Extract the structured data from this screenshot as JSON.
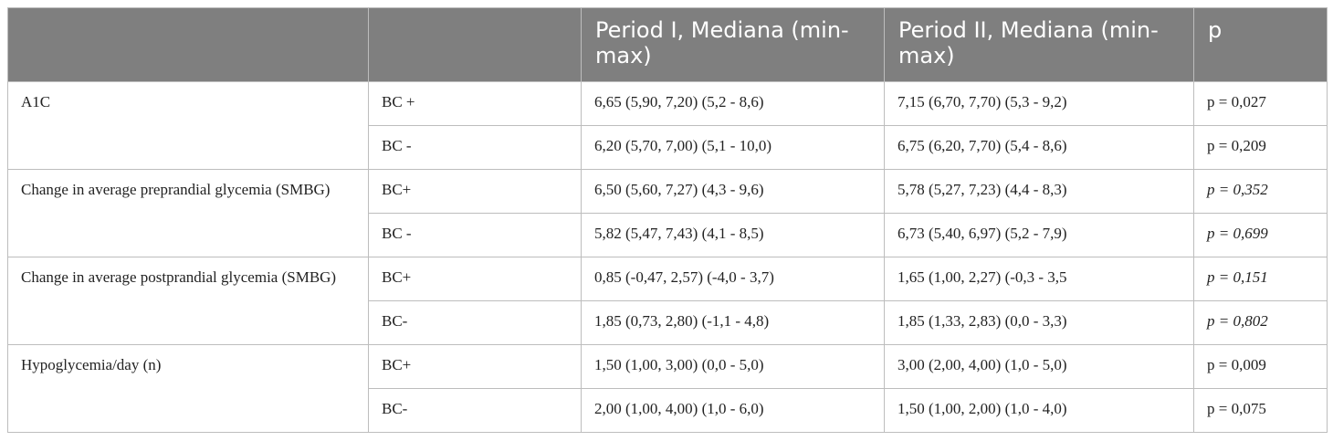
{
  "table": {
    "headers": [
      "",
      "",
      "Period I, Mediana (min-max)",
      "Period II, Mediana (min-max)",
      "p"
    ],
    "groups": [
      {
        "label": "A1C",
        "rows": [
          {
            "subgroup": "BC +",
            "period1": "6,65 (5,90, 7,20) (5,2 - 8,6)",
            "period2": "7,15 (6,70, 7,70) (5,3 - 9,2)",
            "p": "p = 0,027",
            "p_italic": false
          },
          {
            "subgroup": "BC -",
            "period1": "6,20 (5,70, 7,00) (5,1 - 10,0)",
            "period2": "6,75 (6,20, 7,70) (5,4 - 8,6)",
            "p": "p = 0,209",
            "p_italic": false
          }
        ]
      },
      {
        "label": "Change in average preprandial glycemia (SMBG)",
        "rows": [
          {
            "subgroup": "BC+",
            "period1": "6,50 (5,60, 7,27) (4,3 - 9,6)",
            "period2": "5,78 (5,27, 7,23) (4,4 - 8,3)",
            "p": "p = 0,352",
            "p_italic": true
          },
          {
            "subgroup": "BC -",
            "period1": "5,82 (5,47, 7,43) (4,1 - 8,5)",
            "period2": "6,73 (5,40, 6,97) (5,2 - 7,9)",
            "p": "p = 0,699",
            "p_italic": true
          }
        ]
      },
      {
        "label": "Change in average postprandial glycemia (SMBG)",
        "rows": [
          {
            "subgroup": "BC+",
            "period1": "0,85 (-0,47, 2,57) (-4,0 - 3,7)",
            "period2": "1,65 (1,00, 2,27) (-0,3 - 3,5",
            "p": "p = 0,151",
            "p_italic": true
          },
          {
            "subgroup": "BC-",
            "period1": "1,85 (0,73, 2,80) (-1,1 - 4,8)",
            "period2": "1,85 (1,33, 2,83) (0,0 - 3,3)",
            "p": "p = 0,802",
            "p_italic": true
          }
        ]
      },
      {
        "label": "Hypoglycemia/day (n)",
        "rows": [
          {
            "subgroup": "BC+",
            "period1": "1,50 (1,00, 3,00) (0,0 - 5,0)",
            "period2": "3,00 (2,00, 4,00) (1,0 - 5,0)",
            "p": "p = 0,009",
            "p_italic": false
          },
          {
            "subgroup": "BC-",
            "period1": "2,00 (1,00, 4,00) (1,0 - 6,0)",
            "period2": "1,50 (1,00, 2,00) (1,0 - 4,0)",
            "p": "p = 0,075",
            "p_italic": false
          }
        ]
      }
    ]
  }
}
